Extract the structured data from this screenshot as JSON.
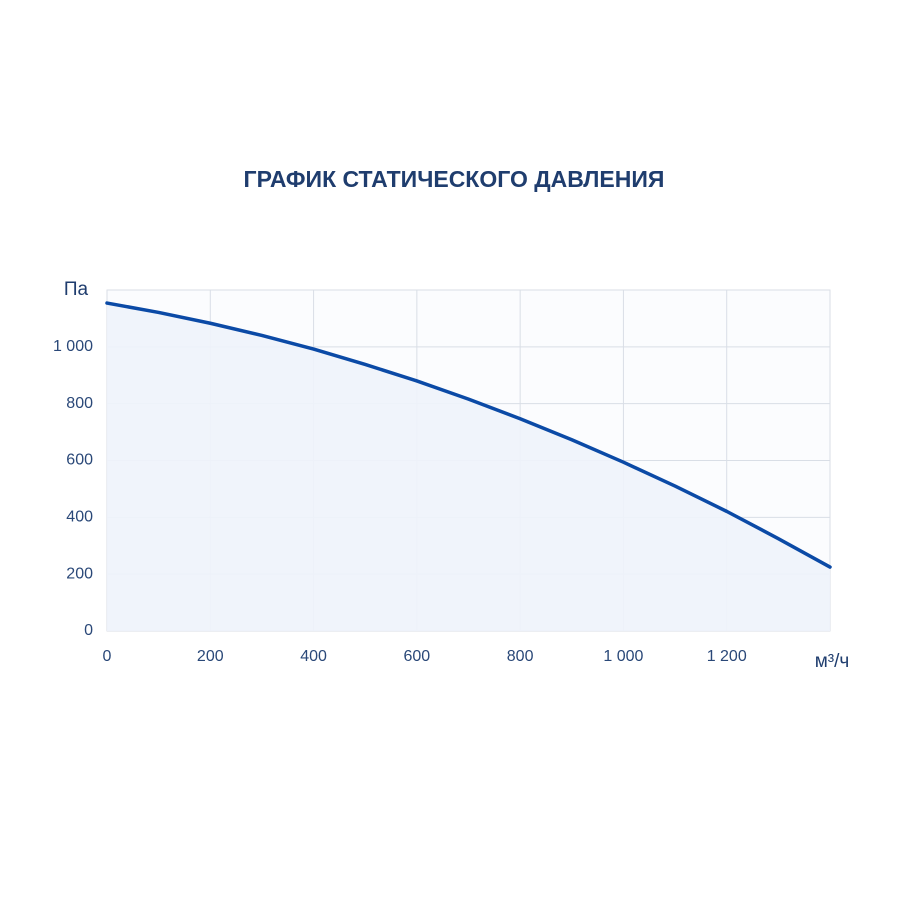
{
  "chart_data": {
    "type": "area",
    "title": "ГРАФИК СТАТИЧЕСКОГО ДАВЛЕНИЯ",
    "y_label": "Па",
    "x_label": "м³/ч",
    "x": [
      0,
      100,
      200,
      300,
      400,
      500,
      600,
      700,
      800,
      900,
      1000,
      1100,
      1200,
      1300,
      1400
    ],
    "series": [
      {
        "color": "#0b4aa6",
        "values": [
          1154,
          1121,
          1083,
          1040,
          992,
          938,
          880,
          816,
          747,
          673,
          594,
          510,
          421,
          325,
          225
        ]
      }
    ],
    "xlim": [
      0,
      1400
    ],
    "ylim": [
      0,
      1200
    ],
    "xticks": [
      0,
      200,
      400,
      600,
      800,
      {
        "value": 1000,
        "label": "1 000"
      },
      {
        "value": 1200,
        "label": "1 200"
      }
    ],
    "yticks": [
      0,
      200,
      400,
      600,
      800,
      {
        "value": 1000,
        "label": "1 000"
      }
    ],
    "grid": true
  }
}
